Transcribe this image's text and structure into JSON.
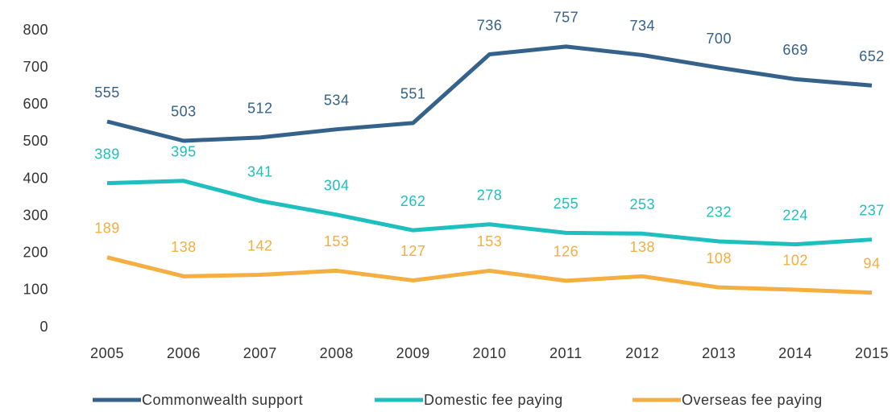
{
  "chart_data": {
    "type": "line",
    "categories": [
      "2005",
      "2006",
      "2007",
      "2008",
      "2009",
      "2010",
      "2011",
      "2012",
      "2013",
      "2014",
      "2015"
    ],
    "series": [
      {
        "name": "Commonwealth support",
        "color": "#35628a",
        "values": [
          555,
          503,
          512,
          534,
          551,
          736,
          757,
          734,
          700,
          669,
          652
        ]
      },
      {
        "name": "Domestic fee paying",
        "color": "#20bfbf",
        "values": [
          389,
          395,
          341,
          304,
          262,
          278,
          255,
          253,
          232,
          224,
          237
        ]
      },
      {
        "name": "Overseas fee paying",
        "color": "#f5ae40",
        "values": [
          189,
          138,
          142,
          153,
          127,
          153,
          126,
          138,
          108,
          102,
          94
        ]
      }
    ],
    "ylim": [
      0,
      800
    ],
    "yticks": [
      0,
      100,
      200,
      300,
      400,
      500,
      600,
      700,
      800
    ],
    "legend": "bottom"
  }
}
